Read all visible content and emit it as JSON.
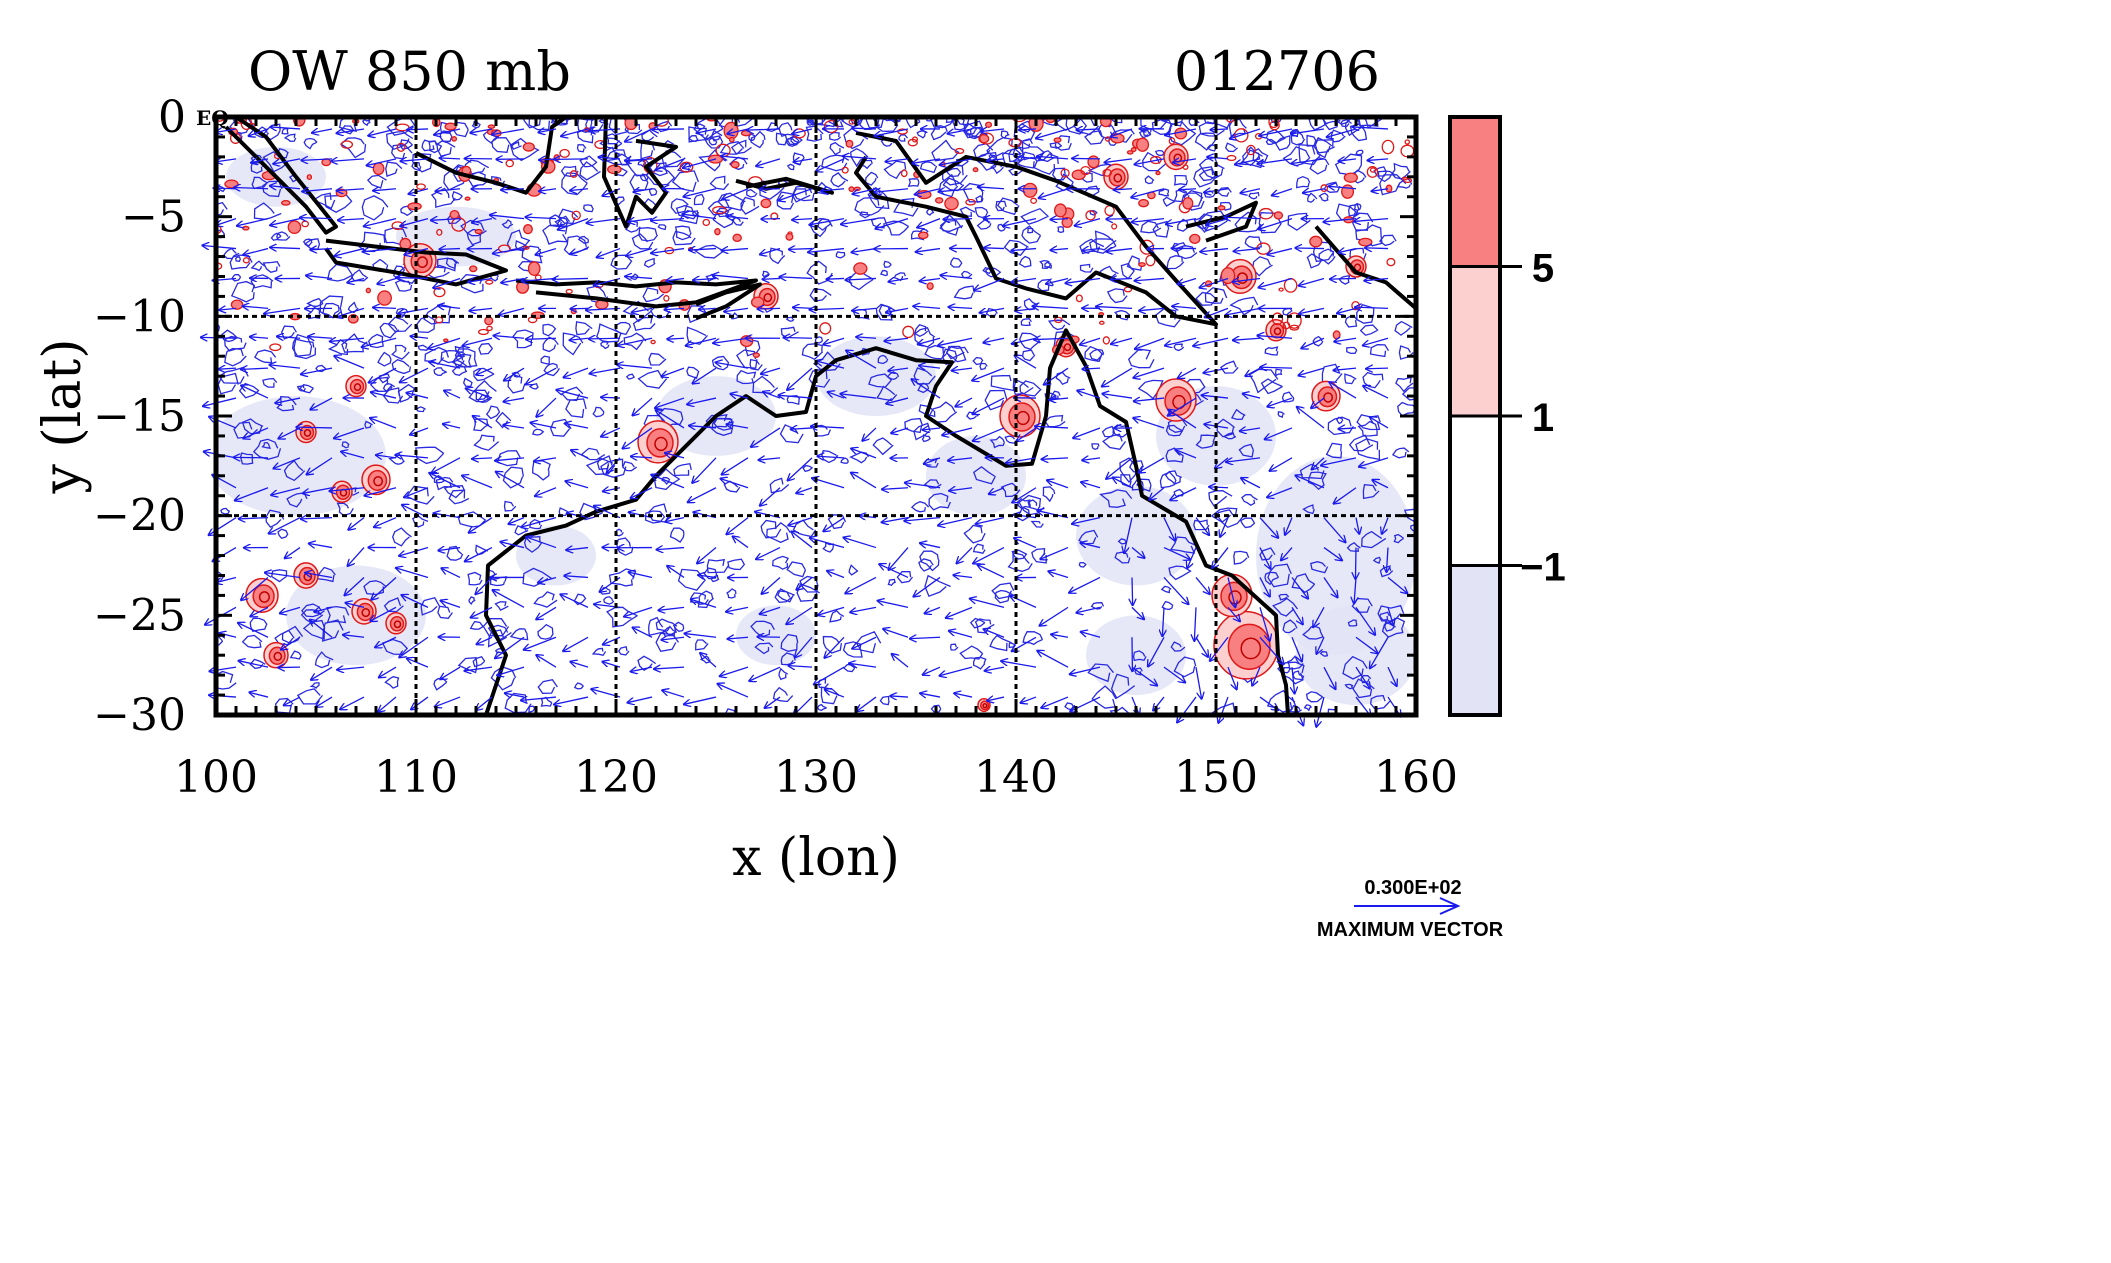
{
  "chart_data": {
    "type": "heatmap",
    "title": "OW 850 mb",
    "timestamp": "012706",
    "xlabel": "x (lon)",
    "ylabel": "y (lat)",
    "x_ticks": [
      100,
      110,
      120,
      130,
      140,
      150,
      160
    ],
    "y_ticks": [
      0,
      -5,
      -10,
      -15,
      -20,
      -25,
      -30
    ],
    "y_tick_labels": [
      "0",
      "−5",
      "−10",
      "−15",
      "−20",
      "−25",
      "−30"
    ],
    "xlim": [
      100,
      160
    ],
    "ylim": [
      -30,
      0
    ],
    "grid": true,
    "grid_x": [
      110,
      120,
      130,
      140,
      150
    ],
    "grid_y": [
      -10,
      -20
    ],
    "corner_label": "EQ",
    "colorbar": {
      "levels": [
        "5",
        "1",
        "−1"
      ],
      "level_values": [
        5,
        1,
        -1
      ],
      "colors": [
        "#f88080",
        "#fdd0d0",
        "#ffffff",
        "#e2e4f6"
      ]
    },
    "vector_legend": {
      "value": "0.300E+02",
      "label": "MAXIMUM VECTOR"
    },
    "positive_regions": [
      {
        "lon": 122.1,
        "lat": -16.3,
        "r": 1.0
      },
      {
        "lon": 110.2,
        "lat": -7.2,
        "r": 0.8
      },
      {
        "lon": 127.5,
        "lat": -9.0,
        "r": 0.6
      },
      {
        "lon": 142.5,
        "lat": -11.5,
        "r": 0.5
      },
      {
        "lon": 140.2,
        "lat": -15.0,
        "r": 1.0
      },
      {
        "lon": 148.0,
        "lat": -14.2,
        "r": 1.0
      },
      {
        "lon": 151.2,
        "lat": -8.0,
        "r": 0.8
      },
      {
        "lon": 153.0,
        "lat": -10.7,
        "r": 0.5
      },
      {
        "lon": 155.5,
        "lat": -14.0,
        "r": 0.7
      },
      {
        "lon": 151.5,
        "lat": -26.5,
        "r": 1.6
      },
      {
        "lon": 150.8,
        "lat": -24.0,
        "r": 1.0
      },
      {
        "lon": 108.0,
        "lat": -18.2,
        "r": 0.7
      },
      {
        "lon": 106.3,
        "lat": -18.8,
        "r": 0.5
      },
      {
        "lon": 107.4,
        "lat": -24.8,
        "r": 0.6
      },
      {
        "lon": 109.0,
        "lat": -25.4,
        "r": 0.5
      },
      {
        "lon": 102.3,
        "lat": -24.0,
        "r": 0.8
      },
      {
        "lon": 104.5,
        "lat": -23.0,
        "r": 0.6
      },
      {
        "lon": 107.0,
        "lat": -13.5,
        "r": 0.5
      },
      {
        "lon": 104.5,
        "lat": -15.8,
        "r": 0.5
      },
      {
        "lon": 145.0,
        "lat": -3.0,
        "r": 0.6
      },
      {
        "lon": 148.0,
        "lat": -2.0,
        "r": 0.6
      },
      {
        "lon": 157.0,
        "lat": -7.5,
        "r": 0.5
      },
      {
        "lon": 103.0,
        "lat": -27.0,
        "r": 0.6
      },
      {
        "lon": 138.4,
        "lat": -29.5,
        "r": 0.3
      }
    ]
  }
}
